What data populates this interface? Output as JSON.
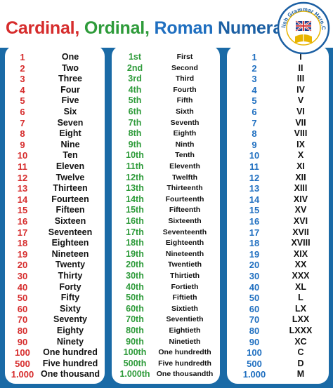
{
  "title": {
    "part1": "Cardinal,",
    "part2": "Ordinal,",
    "part3": "Roman",
    "part4": "Numerals"
  },
  "logo": {
    "text": "English Grammar Here.Com",
    "colors": {
      "ring": "#1b5fa3",
      "accent": "#e8b400"
    }
  },
  "colors": {
    "band": "#1a6aa6",
    "cardinal_number": "#d62c2c",
    "ordinal_number": "#2e9b3a",
    "arabic_number": "#1f6fc0"
  },
  "cardinal": {
    "numbers": [
      "1",
      "2",
      "3",
      "4",
      "5",
      "6",
      "7",
      "8",
      "9",
      "10",
      "11",
      "12",
      "13",
      "14",
      "15",
      "16",
      "17",
      "18",
      "19",
      "20",
      "30",
      "40",
      "50",
      "60",
      "70",
      "80",
      "90",
      "100",
      "500",
      "1.000"
    ],
    "words": [
      "One",
      "Two",
      "Three",
      "Four",
      "Five",
      "Six",
      "Seven",
      "Eight",
      "Nine",
      "Ten",
      "Eleven",
      "Twelve",
      "Thirteen",
      "Fourteen",
      "Fifteen",
      "Sixteen",
      "Seventeen",
      "Eighteen",
      "Nineteen",
      "Twenty",
      "Thirty",
      "Forty",
      "Fifty",
      "Sixty",
      "Seventy",
      "Eighty",
      "Ninety",
      "One hundred",
      "Five hundred",
      "One thousand"
    ]
  },
  "ordinal": {
    "numbers": [
      "1st",
      "2nd",
      "3rd",
      "4th",
      "5th",
      "6th",
      "7th",
      "8th",
      "9th",
      "10th",
      "11th",
      "12th",
      "13th",
      "14th",
      "15th",
      "16th",
      "17th",
      "18th",
      "19th",
      "20th",
      "30th",
      "40th",
      "50th",
      "60th",
      "70th",
      "80th",
      "90th",
      "100th",
      "500th",
      "1.000th"
    ],
    "words": [
      "First",
      "Second",
      "Third",
      "Fourth",
      "Fifth",
      "Sixth",
      "Seventh",
      "Eighth",
      "Ninth",
      "Tenth",
      "Eleventh",
      "Twelfth",
      "Thirteenth",
      "Fourteenth",
      "Fifteenth",
      "Sixteenth",
      "Seventeenth",
      "Eighteenth",
      "Nineteenth",
      "Twentieth",
      "Thirtieth",
      "Fortieth",
      "Fiftieth",
      "Sixtieth",
      "Seventieth",
      "Eightieth",
      "Ninetieth",
      "One hundredth",
      "Five hundredth",
      "One thousandth"
    ]
  },
  "roman": {
    "numbers": [
      "1",
      "2",
      "3",
      "4",
      "5",
      "6",
      "7",
      "8",
      "9",
      "10",
      "11",
      "12",
      "13",
      "14",
      "15",
      "16",
      "17",
      "18",
      "19",
      "20",
      "30",
      "40",
      "50",
      "60",
      "70",
      "80",
      "90",
      "100",
      "500",
      "1.000"
    ],
    "numerals": [
      "I",
      "II",
      "III",
      "IV",
      "V",
      "VI",
      "VII",
      "VIII",
      "IX",
      "X",
      "XI",
      "XII",
      "XIII",
      "XIV",
      "XV",
      "XVI",
      "XVII",
      "XVIII",
      "XIX",
      "XX",
      "XXX",
      "XL",
      "L",
      "LX",
      "LXX",
      "LXXX",
      "XC",
      "C",
      "D",
      "M"
    ]
  }
}
